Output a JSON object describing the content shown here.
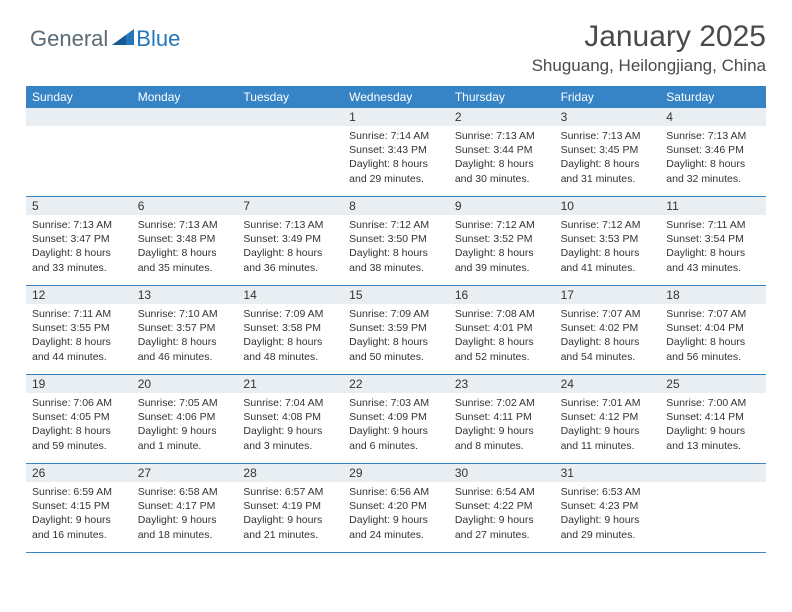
{
  "logo": {
    "text_general": "General",
    "text_blue": "Blue",
    "triangle_color": "#2676bc"
  },
  "header": {
    "month_title": "January 2025",
    "location": "Shuguang, Heilongjiang, China"
  },
  "colors": {
    "header_bg": "#3684c5",
    "header_text": "#ffffff",
    "daynum_bg": "#e9eef2",
    "border": "#3684c5",
    "text": "#333333"
  },
  "day_names": [
    "Sunday",
    "Monday",
    "Tuesday",
    "Wednesday",
    "Thursday",
    "Friday",
    "Saturday"
  ],
  "weeks": [
    [
      null,
      null,
      null,
      {
        "n": "1",
        "sr": "7:14 AM",
        "ss": "3:43 PM",
        "dl": "8 hours and 29 minutes."
      },
      {
        "n": "2",
        "sr": "7:13 AM",
        "ss": "3:44 PM",
        "dl": "8 hours and 30 minutes."
      },
      {
        "n": "3",
        "sr": "7:13 AM",
        "ss": "3:45 PM",
        "dl": "8 hours and 31 minutes."
      },
      {
        "n": "4",
        "sr": "7:13 AM",
        "ss": "3:46 PM",
        "dl": "8 hours and 32 minutes."
      }
    ],
    [
      {
        "n": "5",
        "sr": "7:13 AM",
        "ss": "3:47 PM",
        "dl": "8 hours and 33 minutes."
      },
      {
        "n": "6",
        "sr": "7:13 AM",
        "ss": "3:48 PM",
        "dl": "8 hours and 35 minutes."
      },
      {
        "n": "7",
        "sr": "7:13 AM",
        "ss": "3:49 PM",
        "dl": "8 hours and 36 minutes."
      },
      {
        "n": "8",
        "sr": "7:12 AM",
        "ss": "3:50 PM",
        "dl": "8 hours and 38 minutes."
      },
      {
        "n": "9",
        "sr": "7:12 AM",
        "ss": "3:52 PM",
        "dl": "8 hours and 39 minutes."
      },
      {
        "n": "10",
        "sr": "7:12 AM",
        "ss": "3:53 PM",
        "dl": "8 hours and 41 minutes."
      },
      {
        "n": "11",
        "sr": "7:11 AM",
        "ss": "3:54 PM",
        "dl": "8 hours and 43 minutes."
      }
    ],
    [
      {
        "n": "12",
        "sr": "7:11 AM",
        "ss": "3:55 PM",
        "dl": "8 hours and 44 minutes."
      },
      {
        "n": "13",
        "sr": "7:10 AM",
        "ss": "3:57 PM",
        "dl": "8 hours and 46 minutes."
      },
      {
        "n": "14",
        "sr": "7:09 AM",
        "ss": "3:58 PM",
        "dl": "8 hours and 48 minutes."
      },
      {
        "n": "15",
        "sr": "7:09 AM",
        "ss": "3:59 PM",
        "dl": "8 hours and 50 minutes."
      },
      {
        "n": "16",
        "sr": "7:08 AM",
        "ss": "4:01 PM",
        "dl": "8 hours and 52 minutes."
      },
      {
        "n": "17",
        "sr": "7:07 AM",
        "ss": "4:02 PM",
        "dl": "8 hours and 54 minutes."
      },
      {
        "n": "18",
        "sr": "7:07 AM",
        "ss": "4:04 PM",
        "dl": "8 hours and 56 minutes."
      }
    ],
    [
      {
        "n": "19",
        "sr": "7:06 AM",
        "ss": "4:05 PM",
        "dl": "8 hours and 59 minutes."
      },
      {
        "n": "20",
        "sr": "7:05 AM",
        "ss": "4:06 PM",
        "dl": "9 hours and 1 minute."
      },
      {
        "n": "21",
        "sr": "7:04 AM",
        "ss": "4:08 PM",
        "dl": "9 hours and 3 minutes."
      },
      {
        "n": "22",
        "sr": "7:03 AM",
        "ss": "4:09 PM",
        "dl": "9 hours and 6 minutes."
      },
      {
        "n": "23",
        "sr": "7:02 AM",
        "ss": "4:11 PM",
        "dl": "9 hours and 8 minutes."
      },
      {
        "n": "24",
        "sr": "7:01 AM",
        "ss": "4:12 PM",
        "dl": "9 hours and 11 minutes."
      },
      {
        "n": "25",
        "sr": "7:00 AM",
        "ss": "4:14 PM",
        "dl": "9 hours and 13 minutes."
      }
    ],
    [
      {
        "n": "26",
        "sr": "6:59 AM",
        "ss": "4:15 PM",
        "dl": "9 hours and 16 minutes."
      },
      {
        "n": "27",
        "sr": "6:58 AM",
        "ss": "4:17 PM",
        "dl": "9 hours and 18 minutes."
      },
      {
        "n": "28",
        "sr": "6:57 AM",
        "ss": "4:19 PM",
        "dl": "9 hours and 21 minutes."
      },
      {
        "n": "29",
        "sr": "6:56 AM",
        "ss": "4:20 PM",
        "dl": "9 hours and 24 minutes."
      },
      {
        "n": "30",
        "sr": "6:54 AM",
        "ss": "4:22 PM",
        "dl": "9 hours and 27 minutes."
      },
      {
        "n": "31",
        "sr": "6:53 AM",
        "ss": "4:23 PM",
        "dl": "9 hours and 29 minutes."
      },
      null
    ]
  ],
  "labels": {
    "sunrise": "Sunrise: ",
    "sunset": "Sunset: ",
    "daylight": "Daylight: "
  }
}
